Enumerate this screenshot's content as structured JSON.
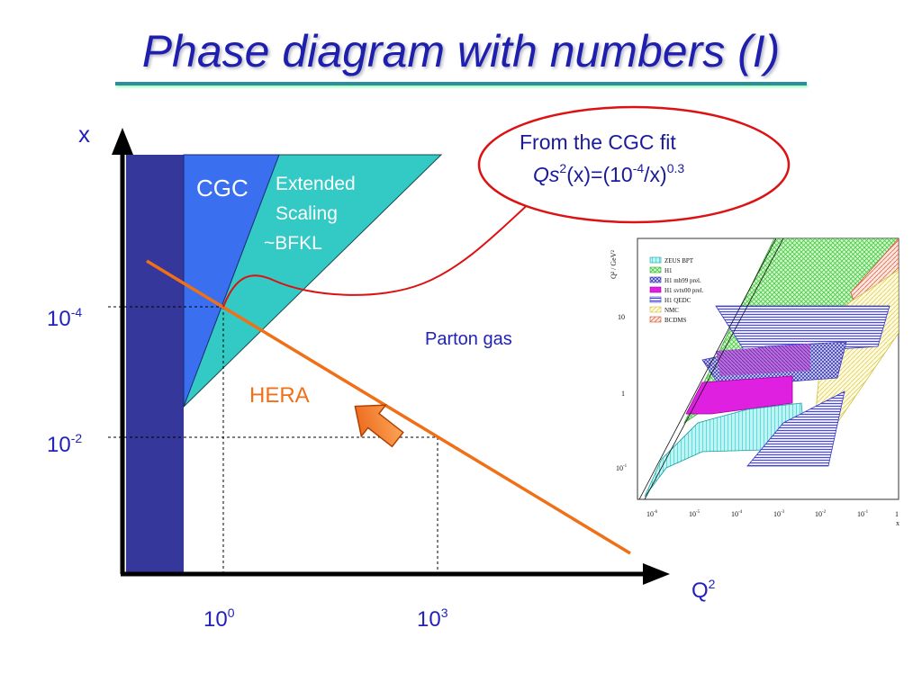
{
  "title": "Phase diagram with numbers (I)",
  "axes": {
    "y_label": "x",
    "x_label_base": "Q",
    "x_label_sup": "2",
    "y_ticks": [
      {
        "base": "10",
        "sup": "-4"
      },
      {
        "base": "10",
        "sup": "-2"
      }
    ],
    "x_ticks": [
      {
        "base": "10",
        "sup": "0"
      },
      {
        "base": "10",
        "sup": "3"
      }
    ]
  },
  "regions": {
    "cgc": "CGC",
    "extended_line1": "Extended",
    "extended_line2": "Scaling",
    "extended_line3": "~BFKL",
    "parton_gas": "Parton gas",
    "hera": "HERA"
  },
  "callout": {
    "line1": "From the CGC fit",
    "qs_italic": "Qs",
    "qs_sup": "2",
    "mid": "(x)=(10",
    "mid_sup": "-4",
    "end": "/x)",
    "end_sup": "0.3"
  },
  "inset": {
    "y_axis_label": "Q² / GeV²",
    "y_ticks": [
      {
        "base": "10",
        "sup": ""
      },
      {
        "base": "1",
        "sup": ""
      },
      {
        "base": "10",
        "sup": "-1"
      }
    ],
    "x_ticks": [
      {
        "base": "10",
        "sup": "-6"
      },
      {
        "base": "10",
        "sup": "-5"
      },
      {
        "base": "10",
        "sup": "-4"
      },
      {
        "base": "10",
        "sup": "-3"
      },
      {
        "base": "10",
        "sup": "-2"
      },
      {
        "base": "10",
        "sup": "-1"
      },
      {
        "base": "1",
        "sup": ""
      }
    ],
    "x_axis_label": "x",
    "legend": [
      {
        "label": "ZEUS BPT",
        "color": "#33d6d6"
      },
      {
        "label": "H1",
        "color": "#44cc44"
      },
      {
        "label": "H1 mb99 prel.",
        "color": "#3a3ab8"
      },
      {
        "label": "H1 svtx00 prel.",
        "color": "#e020e0"
      },
      {
        "label": "H1 QEDC",
        "color": "#4848e0"
      },
      {
        "label": "NMC",
        "color": "#e8e070"
      },
      {
        "label": "BCDMS",
        "color": "#e07050"
      }
    ]
  },
  "colors": {
    "title": "#1f1fae",
    "saturated_band": "#36379a",
    "cgc_region": "#3a6ff0",
    "extended_region": "#33c9c4",
    "hera_line": "#f07018",
    "callout_border": "#dd1111",
    "text_blue": "#2222bb",
    "white_text": "#ffffff"
  }
}
